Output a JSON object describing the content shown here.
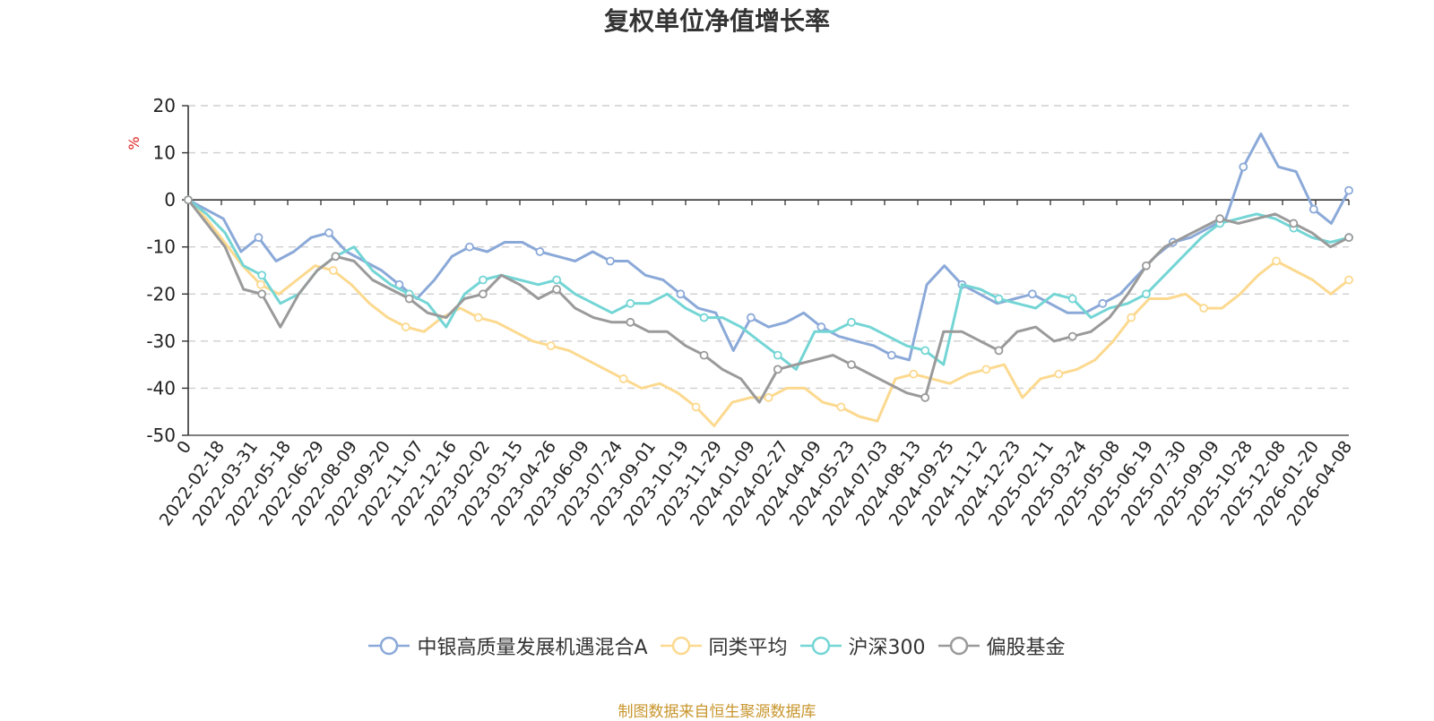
{
  "chart_data": {
    "type": "line",
    "title": "复权单位净值增长率",
    "ylabel": "%",
    "ylim": [
      -50,
      20
    ],
    "yticks": [
      20,
      10,
      0,
      -10,
      -20,
      -30,
      -40,
      -50
    ],
    "grid": true,
    "legend_position": "bottom",
    "x_tick_labels": [
      "0",
      "2022-02-18",
      "2022-03-31",
      "2022-05-18",
      "2022-06-29",
      "2022-08-09",
      "2022-09-20",
      "2022-11-07",
      "2022-12-16",
      "2023-02-02",
      "2023-03-15",
      "2023-04-26",
      "2023-06-09",
      "2023-07-24",
      "2023-09-01",
      "2023-10-19",
      "2023-11-29",
      "2024-01-09",
      "2024-02-27",
      "2024-04-09",
      "2024-05-23",
      "2024-07-03",
      "2024-08-13",
      "2024-09-25",
      "2024-11-12",
      "2024-12-23",
      "2025-02-11",
      "2025-03-24",
      "2025-05-08",
      "2025-06-19",
      "2025-07-30",
      "2025-09-09",
      "2025-10-28",
      "2025-12-08",
      "2026-01-20",
      "2026-04-08"
    ],
    "series": [
      {
        "name": "中银高质量发展机遇混合A",
        "color": "#8ba9d8",
        "values": [
          0,
          -2,
          -4,
          -11,
          -8,
          -13,
          -11,
          -8,
          -7,
          -11,
          -13,
          -15,
          -18,
          -21,
          -17,
          -12,
          -10,
          -11,
          -9,
          -9,
          -11,
          -12,
          -13,
          -11,
          -13,
          -13,
          -16,
          -17,
          -20,
          -23,
          -24,
          -32,
          -25,
          -27,
          -26,
          -24,
          -27,
          -29,
          -30,
          -31,
          -33,
          -34,
          -18,
          -14,
          -18,
          -20,
          -22,
          -21,
          -20,
          -22,
          -24,
          -24,
          -22,
          -20,
          -16,
          -12,
          -9,
          -8,
          -6,
          -4,
          7,
          14,
          7,
          6,
          -2,
          -5,
          2
        ]
      },
      {
        "name": "同类平均",
        "color": "#fcd98f",
        "values": [
          0,
          -4,
          -9,
          -14,
          -18,
          -20,
          -17,
          -14,
          -15,
          -18,
          -22,
          -25,
          -27,
          -28,
          -25,
          -23,
          -25,
          -26,
          -28,
          -30,
          -31,
          -32,
          -34,
          -36,
          -38,
          -40,
          -39,
          -41,
          -44,
          -48,
          -43,
          -42,
          -42,
          -40,
          -40,
          -43,
          -44,
          -46,
          -47,
          -38,
          -37,
          -38,
          -39,
          -37,
          -36,
          -35,
          -42,
          -38,
          -37,
          -36,
          -34,
          -30,
          -25,
          -21,
          -21,
          -20,
          -23,
          -23,
          -20,
          -16,
          -13,
          -15,
          -17,
          -20,
          -17
        ]
      },
      {
        "name": "沪深300",
        "color": "#74d5d5",
        "values": [
          0,
          -3,
          -7,
          -14,
          -16,
          -22,
          -20,
          -15,
          -12,
          -10,
          -15,
          -18,
          -20,
          -22,
          -27,
          -20,
          -17,
          -16,
          -17,
          -18,
          -17,
          -20,
          -22,
          -24,
          -22,
          -22,
          -20,
          -23,
          -25,
          -25,
          -27,
          -30,
          -33,
          -36,
          -28,
          -28,
          -26,
          -27,
          -29,
          -31,
          -32,
          -35,
          -18,
          -19,
          -21,
          -22,
          -23,
          -20,
          -21,
          -25,
          -23,
          -22,
          -20,
          -16,
          -12,
          -8,
          -5,
          -4,
          -3,
          -4,
          -6,
          -8,
          -9,
          -8
        ]
      },
      {
        "name": "偏股基金",
        "color": "#9a9a9a",
        "values": [
          0,
          -5,
          -10,
          -19,
          -20,
          -27,
          -20,
          -15,
          -12,
          -13,
          -17,
          -19,
          -21,
          -24,
          -25,
          -21,
          -20,
          -16,
          -18,
          -21,
          -19,
          -23,
          -25,
          -26,
          -26,
          -28,
          -28,
          -31,
          -33,
          -36,
          -38,
          -43,
          -36,
          -35,
          -34,
          -33,
          -35,
          -37,
          -39,
          -41,
          -42,
          -28,
          -28,
          -30,
          -32,
          -28,
          -27,
          -30,
          -29,
          -28,
          -25,
          -20,
          -14,
          -10,
          -8,
          -6,
          -4,
          -5,
          -4,
          -3,
          -5,
          -7,
          -10,
          -8
        ]
      }
    ]
  },
  "source_text": "制图数据来自恒生聚源数据库",
  "source_color": "#c8962e",
  "unit_color": "#e02020"
}
